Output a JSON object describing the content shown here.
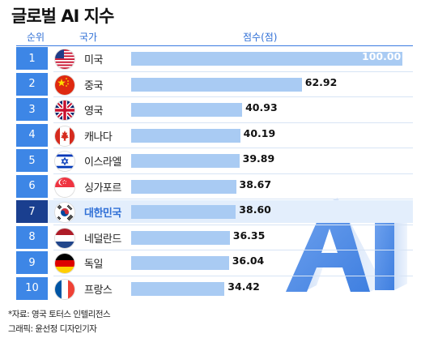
{
  "title": "글로벌 AI 지수",
  "headers": {
    "rank": "순위",
    "country": "국가",
    "score": "점수(점)"
  },
  "colors": {
    "bar": "#a9cbf3",
    "rank_box": "#3d86e6",
    "rank_box_highlight": "#1a3f8f",
    "highlight_row": "#e3eefc",
    "accent": "#2f6fd6"
  },
  "chart_data": {
    "type": "bar",
    "title": "글로벌 AI 지수",
    "ylabel": "점수(점)",
    "highlight": "대한민국",
    "rows": [
      {
        "rank": "1",
        "country": "미국",
        "flag": "us-flag-icon",
        "value": 100.0,
        "label": "100.00"
      },
      {
        "rank": "2",
        "country": "중국",
        "flag": "china-flag-icon",
        "value": 62.92,
        "label": "62.92"
      },
      {
        "rank": "3",
        "country": "영국",
        "flag": "uk-flag-icon",
        "value": 40.93,
        "label": "40.93"
      },
      {
        "rank": "4",
        "country": "캐나다",
        "flag": "canada-flag-icon",
        "value": 40.19,
        "label": "40.19"
      },
      {
        "rank": "5",
        "country": "이스라엘",
        "flag": "israel-flag-icon",
        "value": 39.89,
        "label": "39.89"
      },
      {
        "rank": "6",
        "country": "싱가포르",
        "flag": "singapore-flag-icon",
        "value": 38.67,
        "label": "38.67"
      },
      {
        "rank": "7",
        "country": "대한민국",
        "flag": "korea-flag-icon",
        "value": 38.6,
        "label": "38.60"
      },
      {
        "rank": "8",
        "country": "네덜란드",
        "flag": "netherlands-flag-icon",
        "value": 36.35,
        "label": "36.35"
      },
      {
        "rank": "9",
        "country": "독일",
        "flag": "germany-flag-icon",
        "value": 36.04,
        "label": "36.04"
      },
      {
        "rank": "10",
        "country": "프랑스",
        "flag": "france-flag-icon",
        "value": 34.42,
        "label": "34.42"
      }
    ]
  },
  "ai_graphic": {
    "icon": "ai-3d-letters-icon",
    "text": "AI"
  },
  "footer": {
    "source": "*자료: 영국 토터스 인텔리전스",
    "credit": "그래픽: 윤선정 디자인기자"
  }
}
